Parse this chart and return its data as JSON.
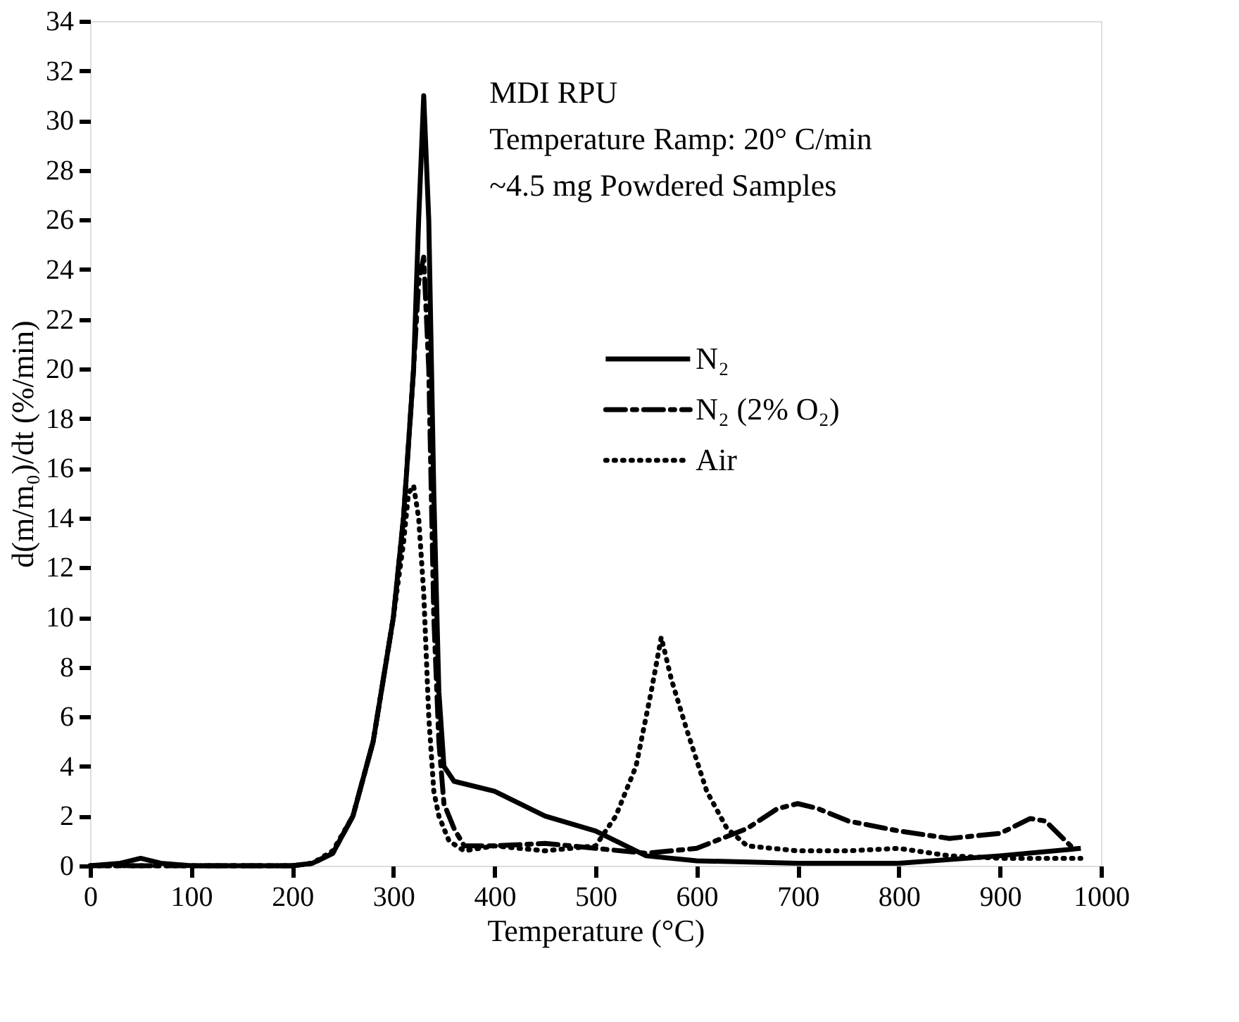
{
  "chart_data": {
    "type": "line",
    "xlabel": "Temperature (°C)",
    "ylabel": "d(m/m₀)/dt (%/min)",
    "annotations": [
      "MDI RPU",
      "Temperature Ramp: 20° C/min",
      " ~4.5 mg Powdered Samples"
    ],
    "xlim": [
      0,
      1000
    ],
    "xticks": [
      0,
      100,
      200,
      300,
      400,
      500,
      600,
      700,
      800,
      900,
      1000
    ],
    "ylim": [
      0,
      34
    ],
    "yticks": [
      0,
      2,
      4,
      6,
      8,
      10,
      12,
      14,
      16,
      18,
      20,
      22,
      24,
      26,
      28,
      30,
      32,
      34
    ],
    "grid": false,
    "legend": "right",
    "series": [
      {
        "name": "N₂",
        "color": "#000000",
        "line_style": "solid",
        "x": [
          0,
          30,
          50,
          70,
          100,
          200,
          220,
          240,
          260,
          280,
          300,
          310,
          320,
          325,
          330,
          335,
          340,
          345,
          350,
          360,
          400,
          450,
          500,
          550,
          600,
          700,
          800,
          900,
          980
        ],
        "values": [
          0,
          0.1,
          0.3,
          0.1,
          0,
          0,
          0.1,
          0.5,
          2,
          5,
          10,
          14,
          20,
          26,
          31,
          26,
          15,
          7,
          4,
          3.4,
          3,
          2,
          1.4,
          0.4,
          0.2,
          0.1,
          0.1,
          0.4,
          0.7
        ]
      },
      {
        "name": "N₂ (2% O₂)",
        "color": "#000000",
        "line_style": "dashed",
        "x": [
          0,
          100,
          200,
          220,
          240,
          260,
          280,
          300,
          310,
          320,
          325,
          330,
          335,
          340,
          345,
          350,
          360,
          370,
          400,
          450,
          500,
          550,
          600,
          650,
          680,
          700,
          720,
          750,
          800,
          850,
          900,
          930,
          945,
          970
        ],
        "values": [
          0,
          0,
          0,
          0.1,
          0.5,
          2,
          5,
          10,
          14,
          20,
          23.5,
          24.5,
          20,
          10,
          5,
          2.5,
          1.5,
          0.8,
          0.8,
          0.9,
          0.7,
          0.5,
          0.7,
          1.5,
          2.3,
          2.5,
          2.3,
          1.8,
          1.4,
          1.1,
          1.3,
          1.9,
          1.8,
          0.8
        ]
      },
      {
        "name": "Air",
        "color": "#000000",
        "line_style": "dotted",
        "x": [
          0,
          100,
          200,
          220,
          240,
          260,
          280,
          300,
          310,
          315,
          320,
          325,
          330,
          335,
          340,
          345,
          355,
          370,
          400,
          450,
          500,
          520,
          540,
          555,
          565,
          575,
          590,
          610,
          630,
          650,
          700,
          750,
          800,
          850,
          900,
          980
        ],
        "values": [
          0,
          0,
          0,
          0.1,
          0.6,
          2,
          5,
          10,
          13,
          15,
          15.3,
          14,
          11,
          6,
          3,
          2,
          1,
          0.6,
          0.8,
          0.6,
          0.8,
          2,
          4,
          7,
          9.2,
          7.5,
          5.5,
          3,
          1.5,
          0.8,
          0.6,
          0.6,
          0.7,
          0.4,
          0.3,
          0.3
        ]
      }
    ]
  }
}
